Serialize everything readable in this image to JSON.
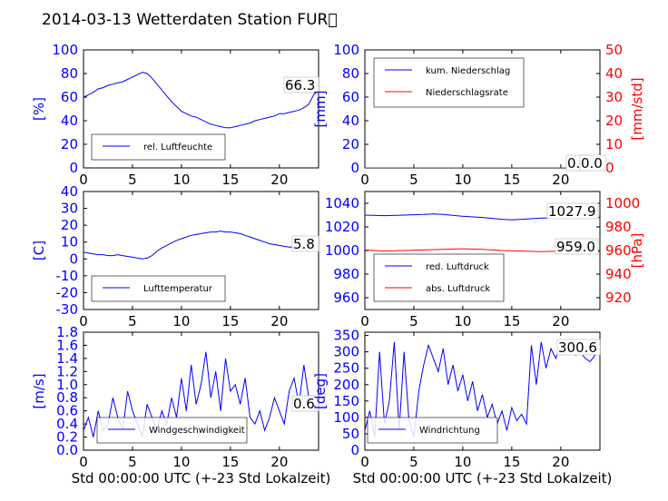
{
  "figure": {
    "title": "2014-03-13 Wetterdaten Station FUR\u0000",
    "xlabel": "Std 00:00:00 UTC (+-23 Std Lokalzeit)"
  },
  "colors": {
    "blue": "#0000ff",
    "red": "#ff0000",
    "black": "#000000"
  },
  "chart_data": [
    {
      "type": "line",
      "ylabel": "[%]",
      "xlim": [
        0,
        24
      ],
      "ylim": [
        0,
        100
      ],
      "xticks": [
        0,
        5,
        10,
        15,
        20
      ],
      "yticks": [
        0,
        20,
        40,
        60,
        80,
        100
      ],
      "legend": "bottom-left",
      "annotation": "66.3",
      "series": [
        {
          "name": "rel. Luftfeuchte",
          "color": "#0000ff",
          "x": [
            0,
            0.5,
            1,
            1.5,
            2,
            2.5,
            3,
            3.5,
            4,
            4.5,
            5,
            5.5,
            6,
            6.5,
            7,
            7.5,
            8,
            8.5,
            9,
            9.5,
            10,
            10.5,
            11,
            11.5,
            12,
            12.5,
            13,
            13.5,
            14,
            14.5,
            15,
            15.5,
            16,
            16.5,
            17,
            17.5,
            18,
            18.5,
            19,
            19.5,
            20,
            20.5,
            21,
            21.5,
            22,
            22.5,
            23,
            23.5,
            24
          ],
          "y": [
            60,
            62,
            64,
            67,
            68,
            70,
            71,
            72,
            73,
            75,
            77,
            79,
            81,
            80,
            76,
            71,
            66,
            61,
            56,
            52,
            48,
            46,
            44,
            43,
            41,
            39,
            37,
            36,
            35,
            34,
            34,
            35,
            36,
            37,
            38,
            40,
            41,
            42,
            43,
            44,
            46,
            46,
            47,
            48,
            49,
            51,
            54,
            62,
            66
          ]
        }
      ]
    },
    {
      "type": "line",
      "ylabel": "[mm]",
      "ylabel_right": "[mm/std]",
      "xlim": [
        0,
        24
      ],
      "ylim": [
        0,
        100
      ],
      "ylim_right": [
        0,
        50
      ],
      "xticks": [
        0,
        5,
        10,
        15,
        20
      ],
      "yticks": [
        0,
        20,
        40,
        60,
        80,
        100
      ],
      "yticks_right": [
        0,
        10,
        20,
        30,
        40,
        50
      ],
      "legend": "top-left",
      "annotations": [
        "0.0",
        "0.0"
      ],
      "series": [
        {
          "name": "kum. Niederschlag",
          "color": "#0000ff",
          "x": [
            0,
            24
          ],
          "y": [
            0,
            0
          ]
        },
        {
          "name": "Niederschlagsrate",
          "color": "#ff0000",
          "x": [
            0,
            24
          ],
          "y": [
            0,
            0
          ]
        }
      ]
    },
    {
      "type": "line",
      "ylabel": "[C]",
      "xlim": [
        0,
        24
      ],
      "ylim": [
        -30,
        40
      ],
      "xticks": [
        0,
        5,
        10,
        15,
        20
      ],
      "yticks": [
        -30,
        -20,
        -10,
        0,
        10,
        20,
        30,
        40
      ],
      "legend": "bottom-left",
      "annotation": "5.8",
      "series": [
        {
          "name": "Lufttemperatur",
          "color": "#0000ff",
          "x": [
            0,
            0.5,
            1,
            1.5,
            2,
            2.5,
            3,
            3.5,
            4,
            4.5,
            5,
            5.5,
            6,
            6.5,
            7,
            7.5,
            8,
            8.5,
            9,
            9.5,
            10,
            10.5,
            11,
            11.5,
            12,
            12.5,
            13,
            13.5,
            14,
            14.5,
            15,
            15.5,
            16,
            16.5,
            17,
            17.5,
            18,
            18.5,
            19,
            19.5,
            20,
            20.5,
            21,
            21.5,
            22,
            22.5,
            23,
            23.5,
            24
          ],
          "y": [
            4,
            3.5,
            3,
            2.5,
            2.5,
            2,
            2,
            2.5,
            2,
            1.5,
            1,
            0.5,
            0,
            0.5,
            2,
            4.5,
            6.5,
            8,
            9.5,
            11,
            12,
            13,
            14,
            14.5,
            15,
            15.5,
            16,
            16,
            16.5,
            16,
            16,
            15.5,
            15,
            14,
            13,
            12,
            11,
            10,
            9,
            8.5,
            8,
            7.5,
            7,
            7,
            6.5,
            6,
            6,
            5.8,
            5.8
          ]
        }
      ]
    },
    {
      "type": "line",
      "ylabel_right": "[hPa]",
      "xlim": [
        0,
        24
      ],
      "ylim": [
        950,
        1050
      ],
      "ylim_right": [
        910,
        1010
      ],
      "xticks": [
        0,
        5,
        10,
        15,
        20
      ],
      "yticks": [
        960,
        980,
        1000,
        1020,
        1040
      ],
      "yticks_right": [
        920,
        940,
        960,
        980,
        1000
      ],
      "legend": "bottom-left",
      "annotations": [
        "1027.9",
        "959.0"
      ],
      "series": [
        {
          "name": "red. Luftdruck",
          "color": "#0000ff",
          "x": [
            0,
            2,
            4,
            6,
            7,
            8,
            10,
            12,
            14,
            15,
            16,
            18,
            20,
            22,
            24
          ],
          "y": [
            1030,
            1029.5,
            1030,
            1030.5,
            1031,
            1030.5,
            1029,
            1028,
            1026.5,
            1026,
            1026.5,
            1027.5,
            1027.5,
            1028,
            1028
          ]
        },
        {
          "name": "abs. Luftdruck",
          "color": "#ff0000",
          "x": [
            0,
            2,
            4,
            6,
            8,
            10,
            12,
            14,
            16,
            18,
            20,
            22,
            24
          ],
          "y": [
            960.5,
            959.5,
            960,
            960.5,
            961,
            961.5,
            961,
            960,
            959.5,
            959,
            959.5,
            959,
            959
          ]
        }
      ]
    },
    {
      "type": "line",
      "ylabel": "[m/s]",
      "xlabel": "Std 00:00:00 UTC (+-23 Std Lokalzeit)",
      "xlim": [
        0,
        24
      ],
      "ylim": [
        0,
        1.8
      ],
      "xticks": [
        0,
        5,
        10,
        15,
        20
      ],
      "yticks": [
        0.0,
        0.2,
        0.4,
        0.6,
        0.8,
        1.0,
        1.2,
        1.4,
        1.6,
        1.8
      ],
      "legend": "bottom-center",
      "annotation": "0.6",
      "series": [
        {
          "name": "Windgeschwindigkeit",
          "color": "#0000ff",
          "x": [
            0,
            0.5,
            1,
            1.5,
            2,
            2.5,
            3,
            3.5,
            4,
            4.5,
            5,
            5.5,
            6,
            6.5,
            7,
            7.5,
            8,
            8.5,
            9,
            9.5,
            10,
            10.5,
            11,
            11.5,
            12,
            12.5,
            13,
            13.5,
            14,
            14.5,
            15,
            15.5,
            16,
            16.5,
            17,
            17.5,
            18,
            18.5,
            19,
            19.5,
            20,
            20.5,
            21,
            21.5,
            22,
            22.5,
            23,
            23.5,
            24
          ],
          "y": [
            0.3,
            0.5,
            0.2,
            0.6,
            0.3,
            0.4,
            0.8,
            0.5,
            0.3,
            0.9,
            0.6,
            0.4,
            0.2,
            0.7,
            0.5,
            0.3,
            0.6,
            0.4,
            0.8,
            0.5,
            1.1,
            0.6,
            1.3,
            0.7,
            1.0,
            1.5,
            0.8,
            1.2,
            0.6,
            1.4,
            0.9,
            1.0,
            0.7,
            1.1,
            0.5,
            0.4,
            0.6,
            0.3,
            0.5,
            0.8,
            0.6,
            0.4,
            0.9,
            1.1,
            0.7,
            1.3,
            0.8,
            0.6,
            0.6
          ]
        }
      ]
    },
    {
      "type": "line",
      "ylabel": "[deg]",
      "xlabel": "Std 00:00:00 UTC (+-23 Std Lokalzeit)",
      "xlim": [
        0,
        24
      ],
      "ylim": [
        0,
        360
      ],
      "xticks": [
        0,
        5,
        10,
        15,
        20
      ],
      "yticks": [
        0,
        50,
        100,
        150,
        200,
        250,
        300,
        350
      ],
      "legend": "bottom-center",
      "annotation": "300.6",
      "series": [
        {
          "name": "Windrichtung",
          "color": "#0000ff",
          "x": [
            0,
            0.5,
            1,
            1.5,
            2,
            2.5,
            3,
            3.5,
            4,
            4.5,
            5,
            5.5,
            6,
            6.5,
            7,
            7.5,
            8,
            8.5,
            9,
            9.5,
            10,
            10.5,
            11,
            11.5,
            12,
            12.5,
            13,
            13.5,
            14,
            14.5,
            15,
            15.5,
            16,
            16.5,
            17,
            17.5,
            18,
            18.5,
            19,
            19.5,
            20,
            20.5,
            21,
            21.5,
            22,
            22.5,
            23,
            23.5,
            24
          ],
          "y": [
            60,
            120,
            40,
            300,
            80,
            150,
            330,
            60,
            300,
            90,
            40,
            180,
            260,
            320,
            280,
            240,
            310,
            200,
            260,
            180,
            230,
            150,
            210,
            120,
            170,
            100,
            140,
            80,
            120,
            60,
            130,
            90,
            110,
            80,
            320,
            200,
            330,
            250,
            310,
            280,
            320,
            300,
            310,
            290,
            300,
            280,
            270,
            290,
            300
          ]
        }
      ]
    }
  ]
}
